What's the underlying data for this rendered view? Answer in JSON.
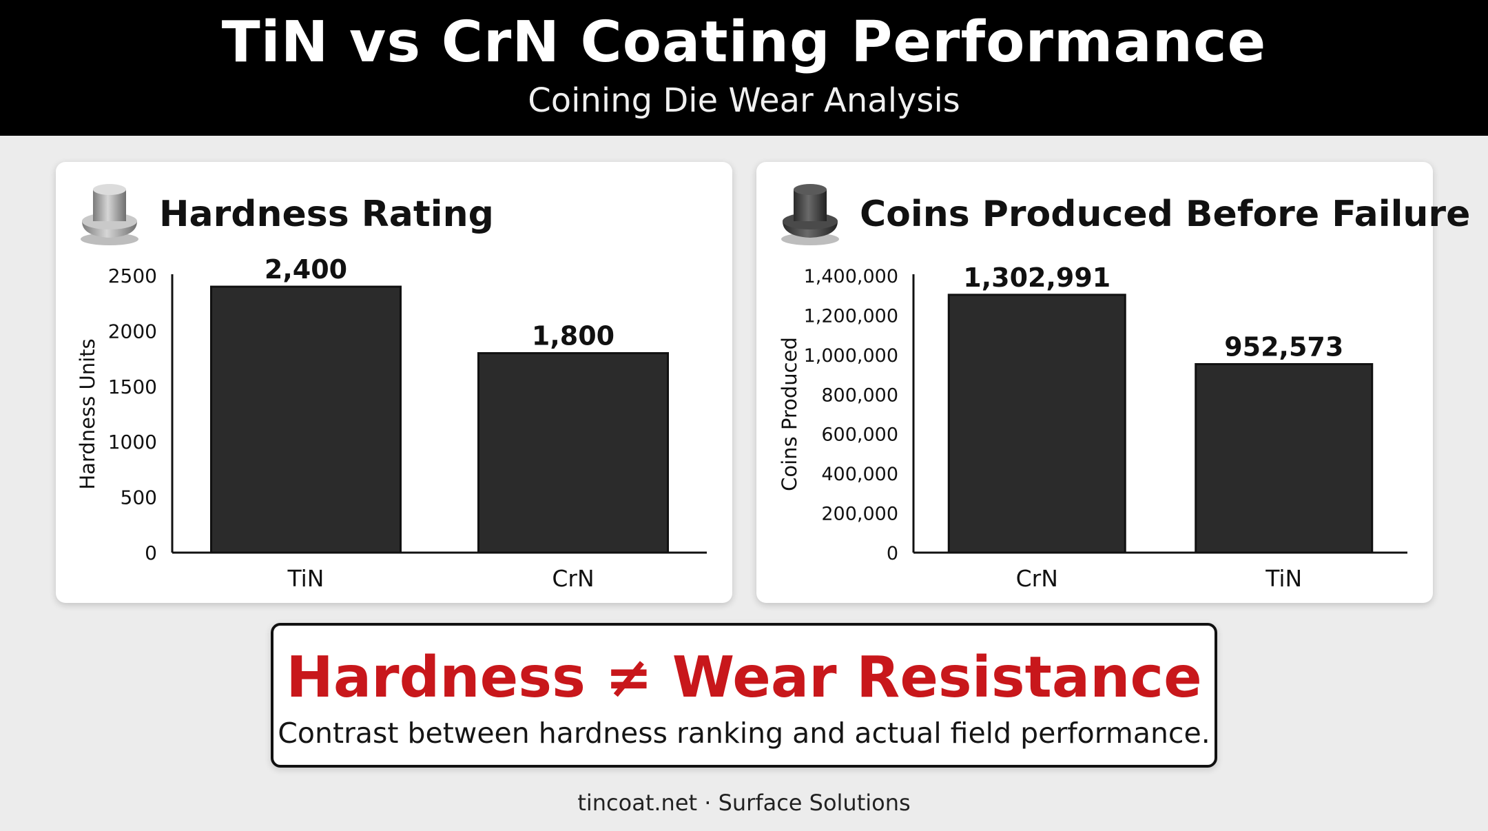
{
  "header": {
    "title": "TiN vs CrN Coating Performance",
    "subtitle": "Coining Die Wear Analysis"
  },
  "chart_data": [
    {
      "type": "bar",
      "title": "Hardness Rating",
      "icon": "coin-die-icon-light",
      "categories": [
        "TiN",
        "CrN"
      ],
      "values": [
        2400,
        1800
      ],
      "value_labels": [
        "2,400",
        "1,800"
      ],
      "ylabel": "Hardness Units",
      "ylim": [
        0,
        2500
      ],
      "yticks": [
        0,
        500,
        1000,
        1500,
        2000,
        2500
      ],
      "ytick_labels": [
        "0",
        "500",
        "1000",
        "1500",
        "2000",
        "2500"
      ],
      "bar_color": "#2b2b2b",
      "grid": false
    },
    {
      "type": "bar",
      "title": "Coins Produced Before Failure",
      "icon": "coin-die-icon-dark",
      "categories": [
        "CrN",
        "TiN"
      ],
      "values": [
        1302991,
        952573
      ],
      "value_labels": [
        "1,302,991",
        "952,573"
      ],
      "ylabel": "Coins Produced",
      "ylim": [
        0,
        1400000
      ],
      "yticks": [
        0,
        200000,
        400000,
        600000,
        800000,
        1000000,
        1200000,
        1400000
      ],
      "ytick_labels": [
        "0",
        "200,000",
        "400,000",
        "600,000",
        "800,000",
        "1,000,000",
        "1,200,000",
        "1,400,000"
      ],
      "bar_color": "#2b2b2b",
      "grid": false
    }
  ],
  "callout": {
    "headline": "Hardness ≠ Wear Resistance",
    "subtext": "Contrast between hardness ranking and actual field performance.",
    "headline_color": "#c8171b"
  },
  "footer": {
    "text": "tincoat.net · Surface Solutions"
  }
}
